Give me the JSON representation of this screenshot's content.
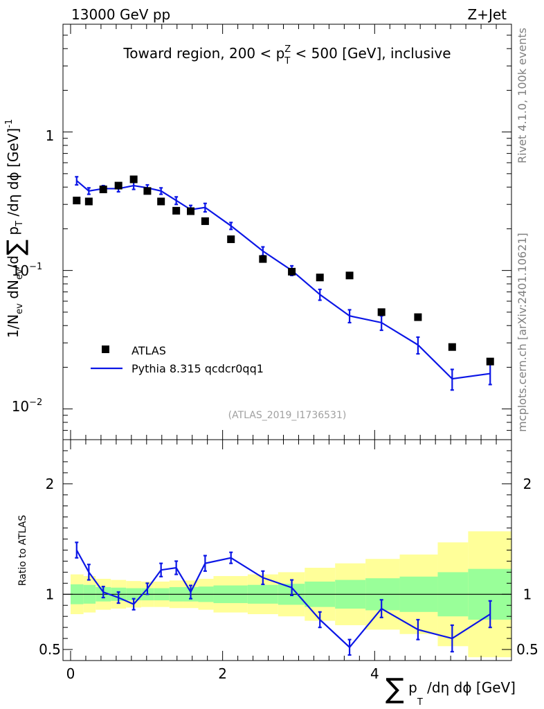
{
  "header": {
    "left": "13000 GeV pp",
    "right": "Z+Jet"
  },
  "side_labels": {
    "rivet": "Rivet 4.1.0,  100k events",
    "mcplots": "mcplots.cern.ch [arXiv:2401.10621]"
  },
  "colors": {
    "mc_line": "#0b16e6",
    "data_marker": "#000000",
    "band_inner": "#99ff99",
    "band_outer": "#ffff99",
    "ref_line": "#000000"
  },
  "chart_data": [
    {
      "type": "scatter",
      "panel": "main",
      "title": "Toward region, 200 < p_T^Z < 500 [GeV], inclusive",
      "ylabel": "1/N_ev dN_ev/d∑ p_T /dη dφ [GeV]^-1",
      "xlabel": "",
      "xlim": [
        -0.1,
        5.8
      ],
      "ylim": [
        0.006,
        6
      ],
      "yscale": "log",
      "y_tick_labels": [
        "1",
        "10^-1",
        "10^-2"
      ],
      "watermark": "(ATLAS_2019_I1736531)",
      "legend": {
        "placement": "lower-left",
        "entries": [
          "ATLAS",
          "Pythia 8.315 qcdcr0qq1"
        ]
      },
      "series": [
        {
          "name": "ATLAS",
          "style": "markers",
          "x": [
            0.08,
            0.24,
            0.43,
            0.63,
            0.83,
            1.01,
            1.19,
            1.39,
            1.58,
            1.77,
            2.11,
            2.53,
            2.91,
            3.28,
            3.67,
            4.09,
            4.57,
            5.02,
            5.52
          ],
          "y": [
            0.32,
            0.315,
            0.385,
            0.41,
            0.455,
            0.375,
            0.315,
            0.27,
            0.268,
            0.227,
            0.168,
            0.121,
            0.098,
            0.089,
            0.092,
            0.05,
            0.046,
            0.028,
            0.022
          ]
        },
        {
          "name": "Pythia 8.315 qcdcr0qq1",
          "style": "line",
          "x": [
            0.08,
            0.24,
            0.43,
            0.63,
            0.83,
            1.01,
            1.19,
            1.39,
            1.58,
            1.77,
            2.11,
            2.53,
            2.91,
            3.28,
            3.67,
            4.09,
            4.57,
            5.02,
            5.52
          ],
          "y": [
            0.445,
            0.375,
            0.39,
            0.39,
            0.41,
            0.395,
            0.375,
            0.32,
            0.275,
            0.285,
            0.21,
            0.138,
            0.1,
            0.067,
            0.047,
            0.042,
            0.029,
            0.0165,
            0.018
          ],
          "err": [
            0.03,
            0.02,
            0.02,
            0.02,
            0.025,
            0.02,
            0.02,
            0.02,
            0.02,
            0.02,
            0.012,
            0.01,
            0.008,
            0.006,
            0.005,
            0.005,
            0.004,
            0.0028,
            0.003
          ]
        }
      ]
    },
    {
      "type": "line",
      "panel": "ratio",
      "ylabel": "Ratio to ATLAS",
      "xlabel": "∑ p_T /dη dφ [GeV]",
      "xlim": [
        -0.1,
        5.8
      ],
      "ylim": [
        0.4,
        2.4
      ],
      "x_tick_labels": [
        "0",
        "2",
        "4"
      ],
      "y_tick_labels": [
        "0.5",
        "1",
        "2"
      ],
      "reference_value": 1,
      "band_bins": {
        "edges": [
          0.0,
          0.17,
          0.33,
          0.53,
          0.73,
          0.93,
          1.1,
          1.3,
          1.48,
          1.68,
          1.88,
          2.33,
          2.73,
          3.08,
          3.48,
          3.88,
          4.33,
          4.83,
          5.23,
          5.8
        ],
        "inner_low": [
          0.91,
          0.915,
          0.935,
          0.94,
          0.945,
          0.945,
          0.945,
          0.935,
          0.935,
          0.93,
          0.92,
          0.915,
          0.905,
          0.885,
          0.87,
          0.855,
          0.84,
          0.8,
          0.77
        ],
        "inner_high": [
          1.09,
          1.085,
          1.065,
          1.06,
          1.055,
          1.055,
          1.055,
          1.065,
          1.065,
          1.07,
          1.08,
          1.085,
          1.095,
          1.115,
          1.13,
          1.145,
          1.16,
          1.2,
          1.23
        ],
        "outer_low": [
          0.82,
          0.835,
          0.86,
          0.87,
          0.88,
          0.885,
          0.885,
          0.875,
          0.875,
          0.86,
          0.835,
          0.82,
          0.8,
          0.76,
          0.72,
          0.68,
          0.64,
          0.53,
          0.43
        ],
        "outer_high": [
          1.18,
          1.165,
          1.14,
          1.13,
          1.12,
          1.115,
          1.115,
          1.125,
          1.125,
          1.14,
          1.165,
          1.18,
          1.2,
          1.24,
          1.28,
          1.32,
          1.36,
          1.47,
          1.57
        ]
      },
      "series": [
        {
          "name": "Pythia 8.315 qcdcr0qq1 / ATLAS",
          "x": [
            0.08,
            0.24,
            0.43,
            0.63,
            0.83,
            1.01,
            1.19,
            1.39,
            1.58,
            1.77,
            2.11,
            2.53,
            2.91,
            3.28,
            3.67,
            4.09,
            4.57,
            5.02,
            5.52
          ],
          "y": [
            1.4,
            1.2,
            1.02,
            0.97,
            0.91,
            1.05,
            1.22,
            1.24,
            1.02,
            1.28,
            1.33,
            1.15,
            1.06,
            0.77,
            0.52,
            0.87,
            0.68,
            0.6,
            0.82
          ],
          "err": [
            0.07,
            0.07,
            0.05,
            0.05,
            0.05,
            0.05,
            0.06,
            0.06,
            0.06,
            0.07,
            0.05,
            0.06,
            0.07,
            0.07,
            0.07,
            0.08,
            0.09,
            0.12,
            0.12
          ]
        }
      ]
    }
  ]
}
